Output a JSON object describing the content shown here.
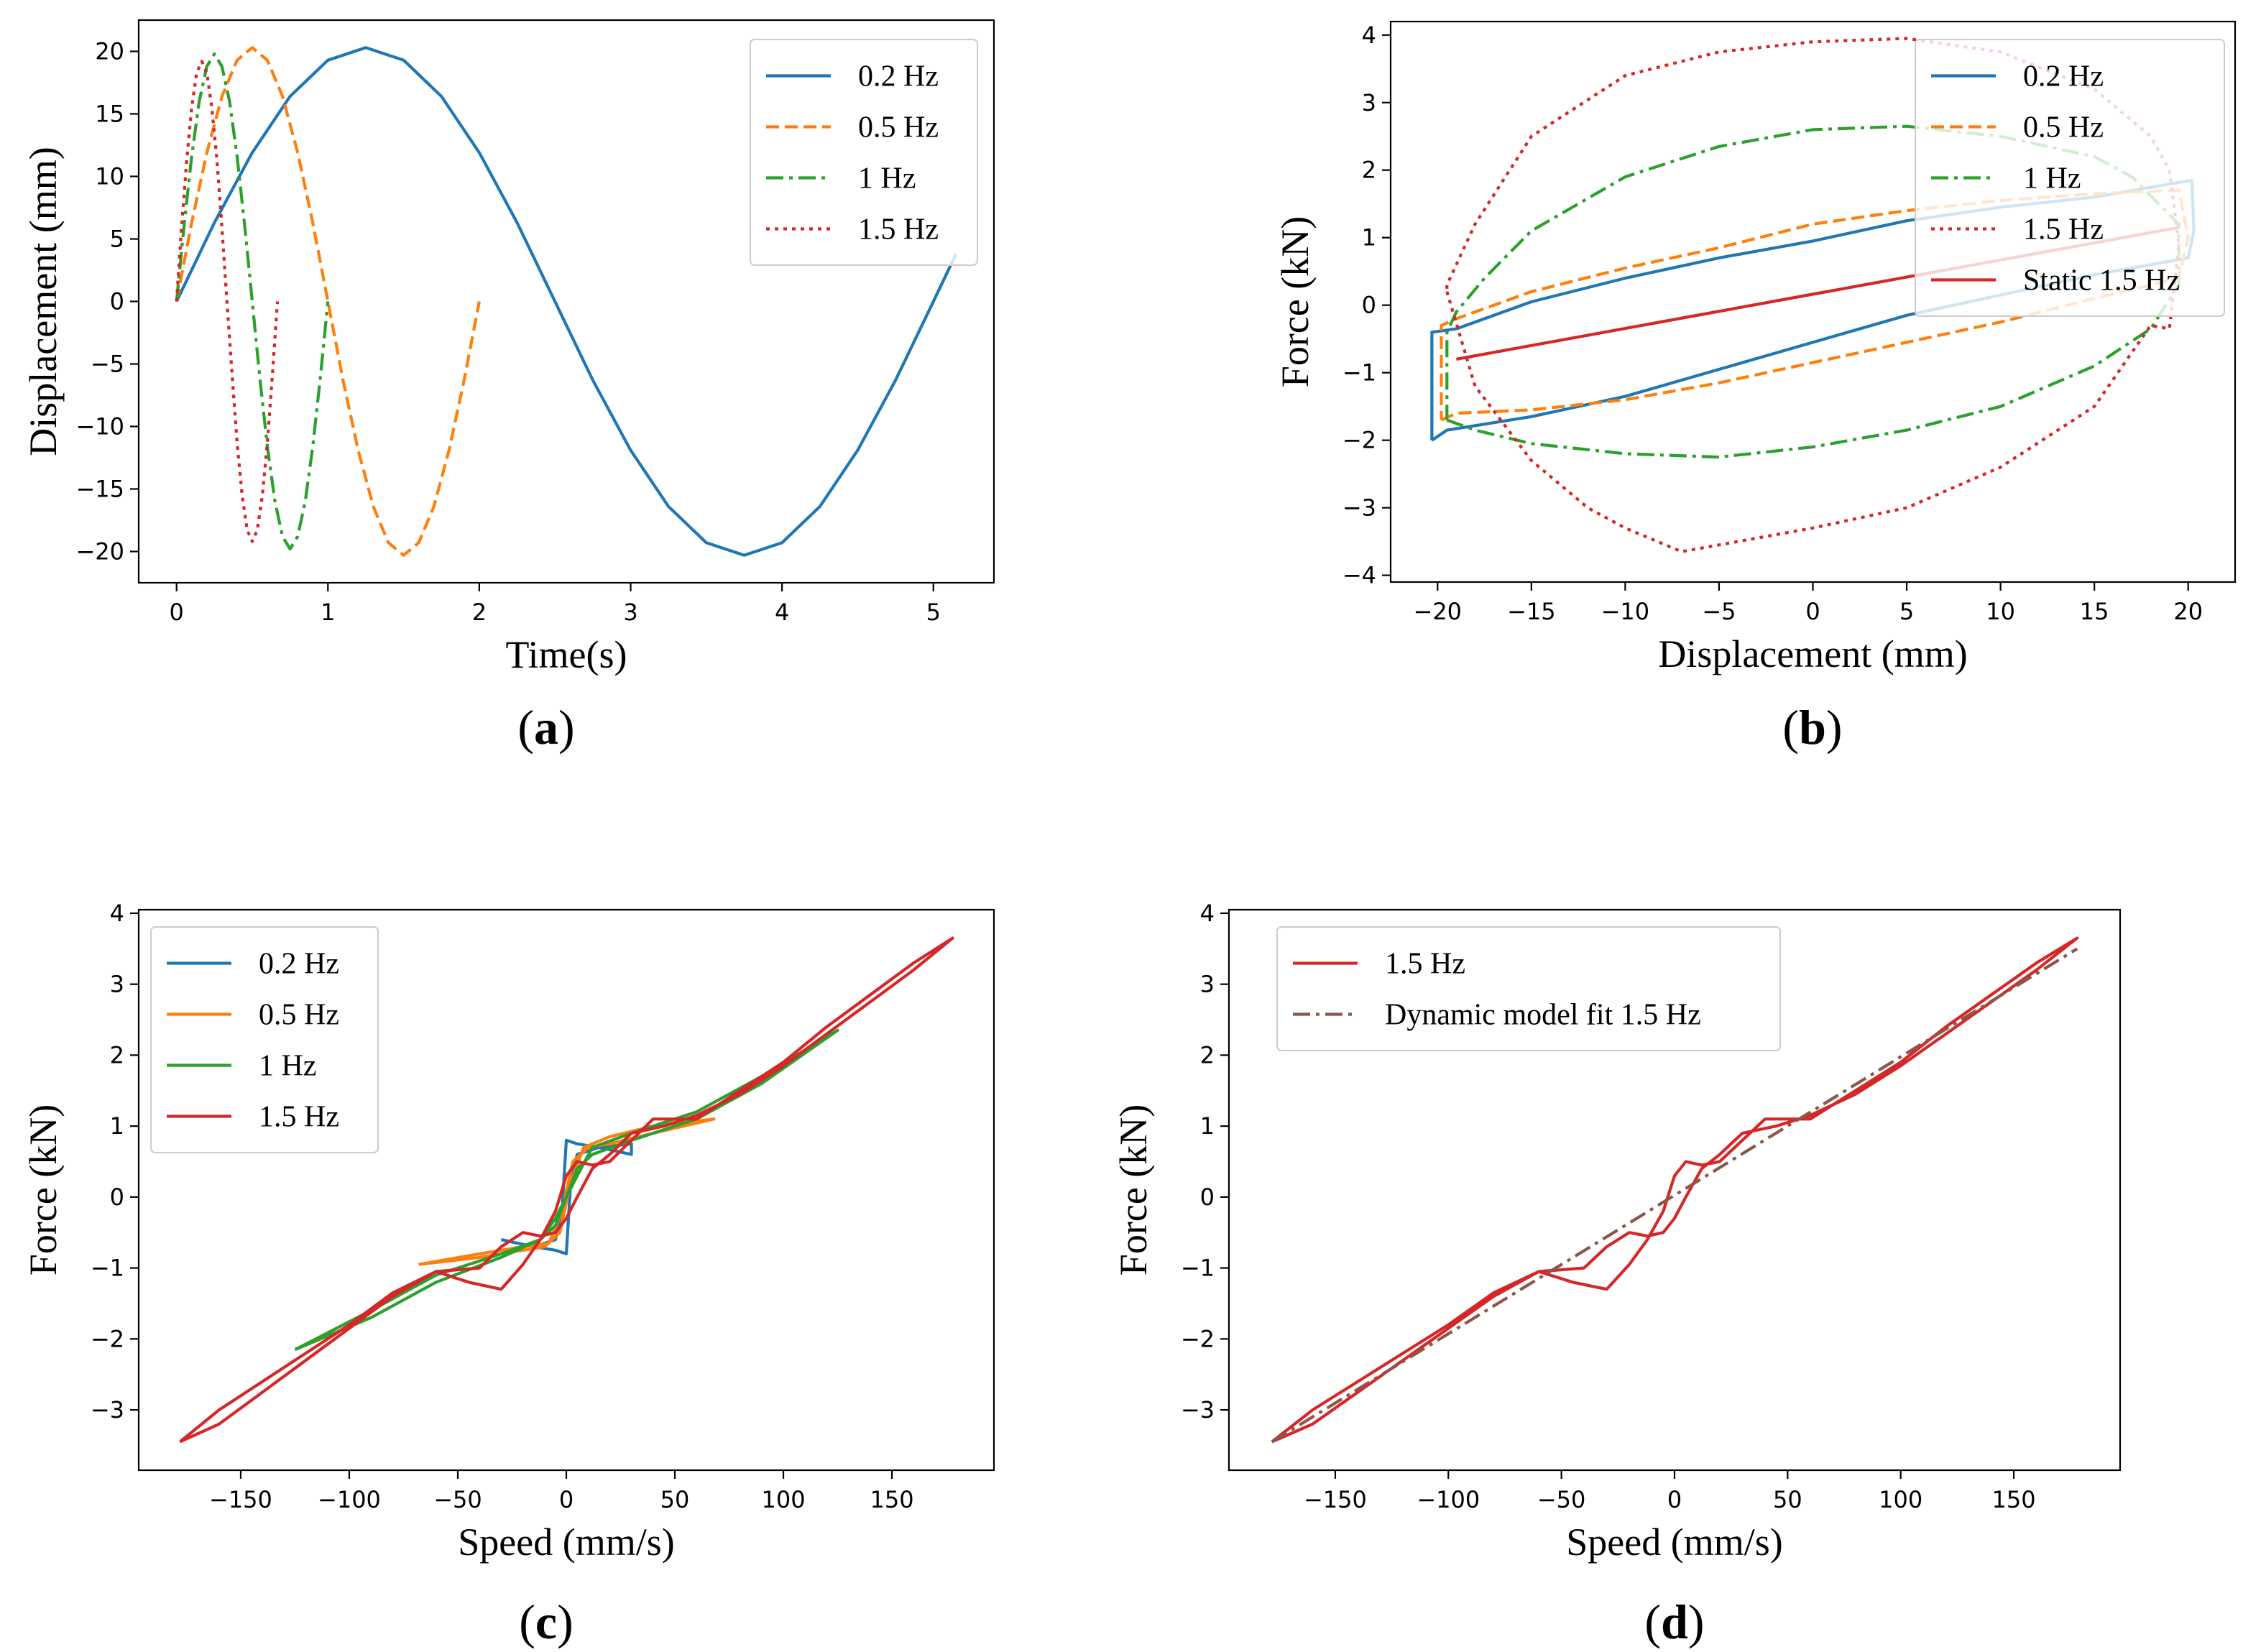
{
  "colors": {
    "blue": "#1f77b4",
    "orange": "#ff7f0e",
    "green": "#2ca02c",
    "red": "#d62728",
    "brown": "#8c564b"
  },
  "chart_data": [
    {
      "id": "a",
      "type": "line",
      "panel_label": "(a)",
      "panel_letter": "a",
      "xlabel": "Time(s)",
      "ylabel": "Displacement (mm)",
      "xlim": [
        -0.25,
        5.4
      ],
      "ylim": [
        -22.5,
        22.5
      ],
      "xticks": [
        0,
        1,
        2,
        3,
        4,
        5
      ],
      "xtick_labels": [
        "0",
        "1",
        "2",
        "3",
        "4",
        "5"
      ],
      "yticks": [
        -20,
        -15,
        -10,
        -5,
        0,
        5,
        10,
        15,
        20
      ],
      "ytick_labels": [
        "−20",
        "−15",
        "−10",
        "−5",
        "0",
        "5",
        "10",
        "15",
        "20"
      ],
      "legend": {
        "position": "top-right"
      },
      "series": [
        {
          "name": "0.2 Hz",
          "color": "blue",
          "dash": "solid",
          "x": [
            0,
            0.25,
            0.5,
            0.75,
            1.0,
            1.25,
            1.5,
            1.75,
            2.0,
            2.25,
            2.5,
            2.75,
            3.0,
            3.25,
            3.5,
            3.75,
            4.0,
            4.25,
            4.5,
            4.75,
            5.0,
            5.15
          ],
          "y": [
            0,
            6.3,
            11.9,
            16.4,
            19.3,
            20.3,
            19.3,
            16.4,
            11.9,
            6.3,
            0,
            -6.3,
            -11.9,
            -16.4,
            -19.3,
            -20.3,
            -19.3,
            -16.4,
            -11.9,
            -6.3,
            0,
            3.8
          ]
        },
        {
          "name": "0.5 Hz",
          "color": "orange",
          "dash": "dashed",
          "x": [
            0,
            0.1,
            0.2,
            0.3,
            0.4,
            0.5,
            0.6,
            0.7,
            0.8,
            0.9,
            1.0,
            1.1,
            1.2,
            1.3,
            1.4,
            1.5,
            1.6,
            1.7,
            1.8,
            1.9,
            2.0
          ],
          "y": [
            0,
            6.3,
            11.9,
            16.4,
            19.3,
            20.3,
            19.3,
            16.4,
            11.9,
            6.3,
            0,
            -6.3,
            -11.9,
            -16.4,
            -19.3,
            -20.3,
            -19.3,
            -16.4,
            -11.9,
            -6.3,
            0
          ]
        },
        {
          "name": "1 Hz",
          "color": "green",
          "dash": "dashdot",
          "x": [
            0,
            0.05,
            0.1,
            0.15,
            0.2,
            0.25,
            0.3,
            0.35,
            0.4,
            0.45,
            0.5,
            0.55,
            0.6,
            0.65,
            0.7,
            0.75,
            0.8,
            0.85,
            0.9,
            0.95,
            1.0
          ],
          "y": [
            0,
            6.1,
            11.6,
            16.0,
            18.8,
            19.8,
            18.8,
            16.0,
            11.6,
            6.1,
            0,
            -6.1,
            -11.6,
            -16.0,
            -18.8,
            -19.8,
            -18.8,
            -16.0,
            -11.6,
            -6.1,
            0
          ]
        },
        {
          "name": "1.5 Hz",
          "color": "red",
          "dash": "dotted",
          "x": [
            0,
            0.033,
            0.067,
            0.1,
            0.133,
            0.167,
            0.2,
            0.233,
            0.267,
            0.3,
            0.333,
            0.367,
            0.4,
            0.433,
            0.467,
            0.5,
            0.533,
            0.567,
            0.6,
            0.633,
            0.667
          ],
          "y": [
            0,
            5.9,
            11.3,
            15.5,
            18.3,
            19.2,
            18.3,
            15.5,
            11.3,
            5.9,
            0,
            -5.9,
            -11.3,
            -15.5,
            -18.3,
            -19.2,
            -18.3,
            -15.5,
            -11.3,
            -5.9,
            0
          ]
        }
      ]
    },
    {
      "id": "b",
      "type": "line",
      "panel_label": "(b)",
      "panel_letter": "b",
      "xlabel": "Displacement (mm)",
      "ylabel": "Force (kN)",
      "xlim": [
        -22.5,
        22.5
      ],
      "ylim": [
        -4.1,
        4.2
      ],
      "xticks": [
        -20,
        -15,
        -10,
        -5,
        0,
        5,
        10,
        15,
        20
      ],
      "xtick_labels": [
        "−20",
        "−15",
        "−10",
        "−5",
        "0",
        "5",
        "10",
        "15",
        "20"
      ],
      "yticks": [
        -4,
        -3,
        -2,
        -1,
        0,
        1,
        2,
        3,
        4
      ],
      "ytick_labels": [
        "−4",
        "−3",
        "−2",
        "−1",
        "0",
        "1",
        "2",
        "3",
        "4"
      ],
      "legend": {
        "position": "top-right"
      },
      "series": [
        {
          "name": "0.2 Hz",
          "color": "blue",
          "dash": "solid",
          "x": [
            -20.3,
            -19.5,
            -15,
            -10,
            -5,
            0,
            5,
            10,
            15,
            20,
            20.3,
            20.2,
            15,
            10,
            5,
            0,
            -5,
            -10,
            -15,
            -19,
            -20.3,
            -20.3
          ],
          "y": [
            -2.0,
            -1.85,
            -1.65,
            -1.35,
            -0.95,
            -0.55,
            -0.15,
            0.15,
            0.45,
            0.7,
            1.1,
            1.85,
            1.6,
            1.45,
            1.25,
            0.95,
            0.7,
            0.4,
            0.05,
            -0.35,
            -0.4,
            -2.0
          ]
        },
        {
          "name": "0.5 Hz",
          "color": "orange",
          "dash": "dashed",
          "x": [
            -19.8,
            -19,
            -15,
            -10,
            -5,
            0,
            5,
            10,
            15,
            19.5,
            20,
            19.5,
            15,
            10,
            5,
            0,
            -5,
            -10,
            -15,
            -19,
            -19.8,
            -19.8
          ],
          "y": [
            -1.7,
            -1.6,
            -1.55,
            -1.4,
            -1.15,
            -0.85,
            -0.55,
            -0.25,
            0.1,
            0.4,
            1.0,
            1.7,
            1.65,
            1.55,
            1.4,
            1.2,
            0.85,
            0.55,
            0.2,
            -0.2,
            -0.3,
            -1.7
          ]
        },
        {
          "name": "1 Hz",
          "color": "green",
          "dash": "dashdot",
          "x": [
            -19.5,
            -18,
            -15,
            -10,
            -5,
            0,
            5,
            10,
            15,
            18,
            19.5,
            19.5,
            17,
            15,
            10,
            5,
            0,
            -5,
            -10,
            -15,
            -17.5,
            -19,
            -19.5,
            -19.5
          ],
          "y": [
            -1.7,
            -1.85,
            -2.05,
            -2.2,
            -2.25,
            -2.1,
            -1.85,
            -1.5,
            -0.9,
            -0.35,
            0.3,
            1.2,
            1.9,
            2.2,
            2.5,
            2.65,
            2.6,
            2.35,
            1.9,
            1.1,
            0.4,
            -0.1,
            -0.4,
            -1.7
          ]
        },
        {
          "name": "1.5 Hz",
          "color": "red",
          "dash": "dotted",
          "x": [
            -19.5,
            -18,
            -15,
            -12,
            -10,
            -7,
            -5,
            0,
            5,
            10,
            15,
            18,
            19,
            19.5,
            19,
            18,
            15,
            10,
            5,
            0,
            -5,
            -10,
            -15,
            -18,
            -19.5,
            -19.5
          ],
          "y": [
            0.2,
            -1.2,
            -2.3,
            -3.0,
            -3.3,
            -3.65,
            -3.55,
            -3.3,
            -3.0,
            -2.4,
            -1.5,
            -0.3,
            -0.35,
            0.9,
            2.0,
            2.5,
            3.2,
            3.75,
            3.95,
            3.9,
            3.75,
            3.4,
            2.5,
            1.2,
            0.3,
            0.2
          ]
        },
        {
          "name": "Static 1.5 Hz",
          "color": "red",
          "dash": "solid",
          "x": [
            -19,
            19.5
          ],
          "y": [
            -0.8,
            1.15
          ]
        }
      ]
    },
    {
      "id": "c",
      "type": "line",
      "panel_label": "(c)",
      "panel_letter": "c",
      "xlabel": "Speed (mm/s)",
      "ylabel": "Force (kN)",
      "xlim": [
        -197,
        197
      ],
      "ylim": [
        -3.85,
        4.05
      ],
      "xticks": [
        -150,
        -100,
        -50,
        0,
        50,
        100,
        150
      ],
      "xtick_labels": [
        "−150",
        "−100",
        "−50",
        "0",
        "50",
        "100",
        "150"
      ],
      "yticks": [
        -3,
        -2,
        -1,
        0,
        1,
        2,
        3,
        4
      ],
      "ytick_labels": [
        "−3",
        "−2",
        "−1",
        "0",
        "1",
        "2",
        "3",
        "4"
      ],
      "legend": {
        "position": "top-left"
      },
      "series": [
        {
          "name": "0.2 Hz",
          "color": "blue",
          "dash": "solid",
          "x": [
            -30,
            -15,
            -5,
            0,
            2,
            5,
            15,
            30,
            30,
            15,
            5,
            0,
            -2,
            -5,
            -15,
            -30
          ],
          "y": [
            -0.6,
            -0.7,
            -0.75,
            -0.8,
            0.2,
            0.6,
            0.7,
            0.75,
            0.6,
            0.7,
            0.75,
            0.8,
            -0.2,
            -0.6,
            -0.7,
            -0.6
          ]
        },
        {
          "name": "0.5 Hz",
          "color": "orange",
          "dash": "solid",
          "x": [
            -68,
            -40,
            -20,
            -8,
            -2,
            3,
            10,
            20,
            40,
            68,
            40,
            20,
            8,
            2,
            -3,
            -10,
            -20,
            -40,
            -68
          ],
          "y": [
            -0.95,
            -0.8,
            -0.7,
            -0.65,
            -0.2,
            0.5,
            0.7,
            0.75,
            0.9,
            1.1,
            1.0,
            0.85,
            0.7,
            0.2,
            -0.5,
            -0.7,
            -0.75,
            -0.85,
            -0.95
          ]
        },
        {
          "name": "1 Hz",
          "color": "green",
          "dash": "solid",
          "x": [
            -125,
            -90,
            -60,
            -30,
            -12,
            -5,
            0,
            5,
            12,
            30,
            60,
            90,
            125,
            90,
            60,
            30,
            12,
            5,
            0,
            -5,
            -12,
            -30,
            -60,
            -90,
            -125
          ],
          "y": [
            -2.15,
            -1.6,
            -1.1,
            -0.8,
            -0.6,
            -0.3,
            0.0,
            0.4,
            0.6,
            0.8,
            1.1,
            1.6,
            2.35,
            1.7,
            1.2,
            0.9,
            0.7,
            0.3,
            0.0,
            -0.4,
            -0.6,
            -0.85,
            -1.2,
            -1.7,
            -2.15
          ]
        },
        {
          "name": "1.5 Hz",
          "color": "red",
          "dash": "solid",
          "x": [
            -178,
            -160,
            -140,
            -120,
            -100,
            -80,
            -60,
            -45,
            -30,
            -20,
            -12,
            -5,
            0,
            5,
            12,
            20,
            30,
            40,
            60,
            80,
            100,
            120,
            140,
            160,
            178,
            160,
            140,
            120,
            100,
            80,
            60,
            45,
            30,
            20,
            12,
            5,
            0,
            -5,
            -12,
            -20,
            -30,
            -40,
            -60,
            -80,
            -100,
            -120,
            -140,
            -160,
            -178
          ],
          "y": [
            -3.45,
            -3.0,
            -2.6,
            -2.2,
            -1.8,
            -1.35,
            -1.05,
            -1.2,
            -1.3,
            -0.95,
            -0.6,
            -0.2,
            0.3,
            0.5,
            0.45,
            0.5,
            0.8,
            1.1,
            1.1,
            1.5,
            1.9,
            2.4,
            2.85,
            3.3,
            3.65,
            3.2,
            2.75,
            2.3,
            1.85,
            1.45,
            1.15,
            1.0,
            0.9,
            0.6,
            0.4,
            0.0,
            -0.3,
            -0.5,
            -0.55,
            -0.5,
            -0.7,
            -1.0,
            -1.05,
            -1.4,
            -1.85,
            -2.3,
            -2.75,
            -3.2,
            -3.45
          ]
        }
      ]
    },
    {
      "id": "d",
      "type": "line",
      "panel_label": "(d)",
      "panel_letter": "d",
      "xlabel": "Speed (mm/s)",
      "ylabel": "Force (kN)",
      "xlim": [
        -197,
        197
      ],
      "ylim": [
        -3.85,
        4.05
      ],
      "xticks": [
        -150,
        -100,
        -50,
        0,
        50,
        100,
        150
      ],
      "xtick_labels": [
        "−150",
        "−100",
        "−50",
        "0",
        "50",
        "100",
        "150"
      ],
      "yticks": [
        -3,
        -2,
        -1,
        0,
        1,
        2,
        3,
        4
      ],
      "ytick_labels": [
        "−3",
        "−2",
        "−1",
        "0",
        "1",
        "2",
        "3",
        "4"
      ],
      "legend": {
        "position": "top-left"
      },
      "series": [
        {
          "name": "1.5 Hz",
          "color": "red",
          "dash": "solid",
          "x": [
            -178,
            -160,
            -140,
            -120,
            -100,
            -80,
            -60,
            -45,
            -30,
            -20,
            -12,
            -5,
            0,
            5,
            12,
            20,
            30,
            40,
            60,
            80,
            100,
            120,
            140,
            160,
            178,
            160,
            140,
            120,
            100,
            80,
            60,
            45,
            30,
            20,
            12,
            5,
            0,
            -5,
            -12,
            -20,
            -30,
            -40,
            -60,
            -80,
            -100,
            -120,
            -140,
            -160,
            -178
          ],
          "y": [
            -3.45,
            -3.0,
            -2.6,
            -2.2,
            -1.8,
            -1.35,
            -1.05,
            -1.2,
            -1.3,
            -0.95,
            -0.6,
            -0.2,
            0.3,
            0.5,
            0.45,
            0.5,
            0.8,
            1.1,
            1.1,
            1.5,
            1.9,
            2.4,
            2.85,
            3.3,
            3.65,
            3.2,
            2.75,
            2.3,
            1.85,
            1.45,
            1.15,
            1.0,
            0.9,
            0.6,
            0.4,
            0.0,
            -0.3,
            -0.5,
            -0.55,
            -0.5,
            -0.7,
            -1.0,
            -1.05,
            -1.4,
            -1.85,
            -2.3,
            -2.75,
            -3.2,
            -3.45
          ]
        },
        {
          "name": "Dynamic model fit 1.5 Hz",
          "color": "brown",
          "dash": "dashdot",
          "x": [
            -178,
            178
          ],
          "y": [
            -3.45,
            3.5
          ]
        }
      ]
    }
  ]
}
